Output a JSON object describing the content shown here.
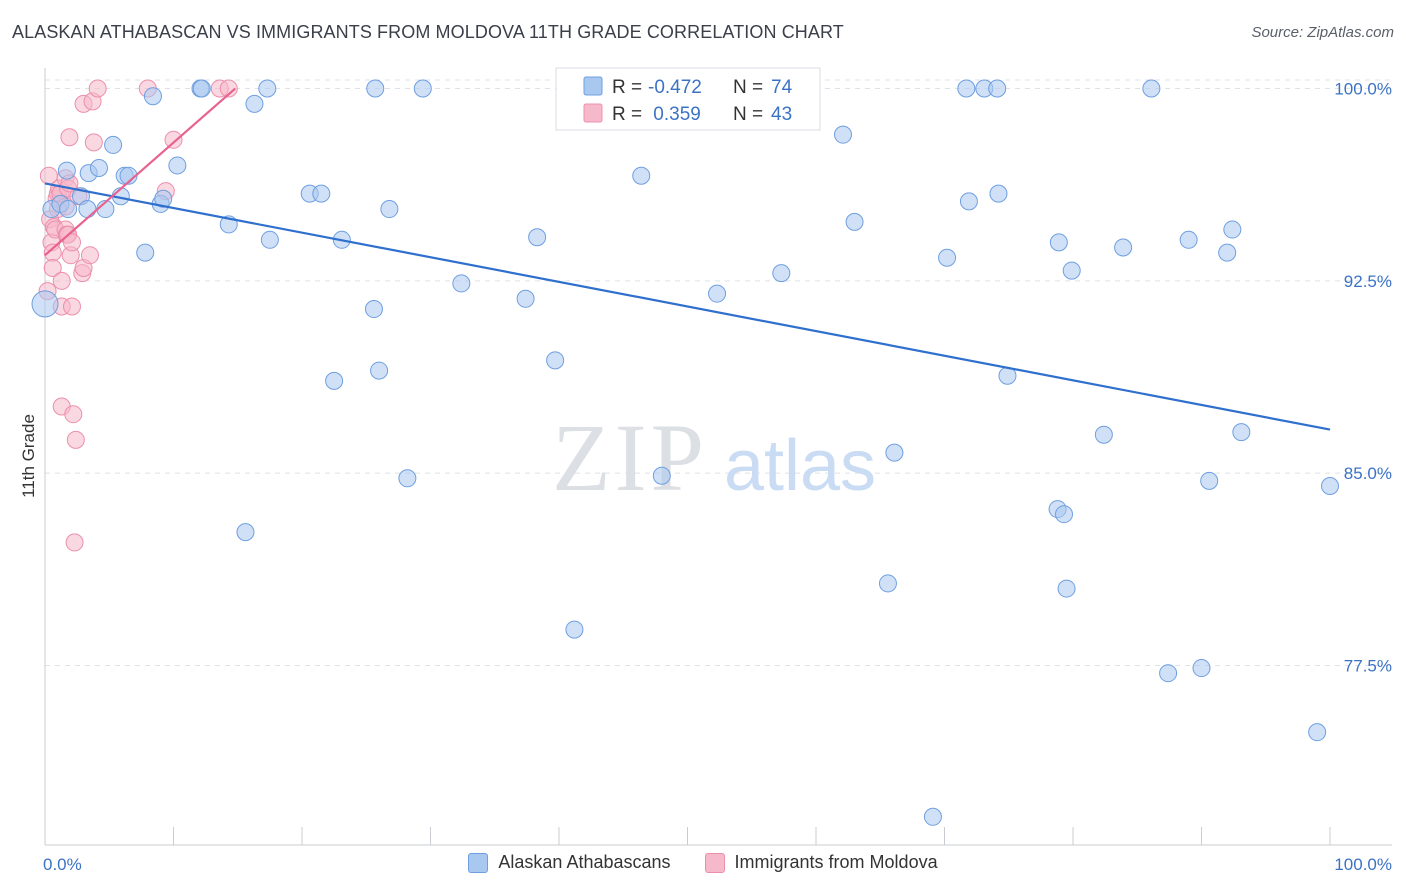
{
  "header": {
    "title": "ALASKAN ATHABASCAN VS IMMIGRANTS FROM MOLDOVA 11TH GRADE CORRELATION CHART",
    "source": "Source: ZipAtlas.com"
  },
  "watermark": {
    "zip": "ZIP",
    "atlas": "atlas"
  },
  "stats_legend": {
    "rows": [
      {
        "r_label": "R =",
        "r_value": "-0.472",
        "n_label": "N =",
        "n_value": "74"
      },
      {
        "r_label": "R =",
        "r_value": " 0.359",
        "n_label": "N =",
        "n_value": "43"
      }
    ]
  },
  "colors": {
    "blue_fill": "#a9c8f0",
    "blue_stroke": "#6f9fe0",
    "blue_line": "#2f6fcd",
    "pink_fill": "#f6b8cb",
    "pink_stroke": "#ec8fab",
    "pink_line": "#e8628f",
    "tick_text": "#3b73c4",
    "grid": "#dde1e8"
  },
  "chart_data": {
    "type": "scatter",
    "title": "ALASKAN ATHABASCAN VS IMMIGRANTS FROM MOLDOVA 11TH GRADE CORRELATION CHART",
    "xlabel": "",
    "ylabel": "11th Grade",
    "xlim": [
      0,
      100
    ],
    "ylim": [
      70.5,
      100.8
    ],
    "x_tick_labels": [
      "0.0%",
      "100.0%"
    ],
    "y_ticks": [
      77.5,
      85.0,
      92.5,
      100.0
    ],
    "y_tick_labels": [
      "77.5%",
      "85.0%",
      "92.5%",
      "100.0%"
    ],
    "grid": true,
    "legend_position": "top-center",
    "series": [
      {
        "name": "Alaskan Athabascans",
        "color": "#a9c8f0",
        "trend": {
          "x": [
            0,
            100
          ],
          "y": [
            96.3,
            86.7
          ]
        },
        "points": [
          [
            0.0,
            91.6
          ],
          [
            0.5,
            95.3
          ],
          [
            1.2,
            95.5
          ],
          [
            1.7,
            96.8
          ],
          [
            1.8,
            95.3
          ],
          [
            2.8,
            95.8
          ],
          [
            3.3,
            95.3
          ],
          [
            3.4,
            96.7
          ],
          [
            4.2,
            96.9
          ],
          [
            4.7,
            95.3
          ],
          [
            5.3,
            97.8
          ],
          [
            5.9,
            95.8
          ],
          [
            6.2,
            96.6
          ],
          [
            6.5,
            96.6
          ],
          [
            7.8,
            93.6
          ],
          [
            8.4,
            99.7
          ],
          [
            9.0,
            95.5
          ],
          [
            9.2,
            95.7
          ],
          [
            10.3,
            97.0
          ],
          [
            12.1,
            100.0
          ],
          [
            12.2,
            100.0
          ],
          [
            14.3,
            94.7
          ],
          [
            15.6,
            82.7
          ],
          [
            16.3,
            99.4
          ],
          [
            17.3,
            100.0
          ],
          [
            17.5,
            94.1
          ],
          [
            20.6,
            95.9
          ],
          [
            21.5,
            95.9
          ],
          [
            22.5,
            88.6
          ],
          [
            23.1,
            94.1
          ],
          [
            25.6,
            91.4
          ],
          [
            25.7,
            100.0
          ],
          [
            26.0,
            89.0
          ],
          [
            26.8,
            95.3
          ],
          [
            28.2,
            84.8
          ],
          [
            29.4,
            100.0
          ],
          [
            32.4,
            92.4
          ],
          [
            37.4,
            91.8
          ],
          [
            38.3,
            94.2
          ],
          [
            39.7,
            89.4
          ],
          [
            41.2,
            78.9
          ],
          [
            46.4,
            96.6
          ],
          [
            48.0,
            84.9
          ],
          [
            52.3,
            92.0
          ],
          [
            57.3,
            92.8
          ],
          [
            62.1,
            98.2
          ],
          [
            63.0,
            94.8
          ],
          [
            65.6,
            80.7
          ],
          [
            66.1,
            85.8
          ],
          [
            69.1,
            71.6
          ],
          [
            70.2,
            93.4
          ],
          [
            71.7,
            100.0
          ],
          [
            71.9,
            95.6
          ],
          [
            73.1,
            100.0
          ],
          [
            74.1,
            100.0
          ],
          [
            74.2,
            95.9
          ],
          [
            74.9,
            88.8
          ],
          [
            78.8,
            83.6
          ],
          [
            78.9,
            94.0
          ],
          [
            79.3,
            83.4
          ],
          [
            79.5,
            80.5
          ],
          [
            79.9,
            92.9
          ],
          [
            82.4,
            86.5
          ],
          [
            83.9,
            93.8
          ],
          [
            86.1,
            100.0
          ],
          [
            87.4,
            77.2
          ],
          [
            89.0,
            94.1
          ],
          [
            90.0,
            77.4
          ],
          [
            90.6,
            84.7
          ],
          [
            92.0,
            93.6
          ],
          [
            92.4,
            94.5
          ],
          [
            93.1,
            86.6
          ],
          [
            99.0,
            74.9
          ],
          [
            100.0,
            84.5
          ]
        ]
      },
      {
        "name": "Immigrants from Moldova",
        "color": "#f6b8cb",
        "trend": {
          "x": [
            0,
            14.8
          ],
          "y": [
            93.5,
            100.0
          ]
        },
        "points": [
          [
            0.2,
            92.1
          ],
          [
            0.4,
            94.9
          ],
          [
            0.5,
            94.0
          ],
          [
            0.6,
            93.6
          ],
          [
            0.6,
            93.0
          ],
          [
            0.7,
            94.6
          ],
          [
            0.8,
            94.5
          ],
          [
            0.9,
            95.7
          ],
          [
            1.0,
            95.3
          ],
          [
            1.0,
            95.9
          ],
          [
            1.1,
            96.1
          ],
          [
            1.2,
            95.9
          ],
          [
            1.3,
            92.5
          ],
          [
            1.3,
            87.6
          ],
          [
            1.3,
            91.5
          ],
          [
            1.6,
            96.5
          ],
          [
            1.6,
            95.4
          ],
          [
            1.6,
            94.5
          ],
          [
            1.7,
            94.3
          ],
          [
            1.8,
            94.3
          ],
          [
            1.8,
            96.1
          ],
          [
            1.9,
            96.3
          ],
          [
            1.9,
            98.1
          ],
          [
            2.0,
            93.5
          ],
          [
            2.1,
            94.0
          ],
          [
            2.1,
            91.5
          ],
          [
            2.2,
            87.3
          ],
          [
            2.3,
            82.3
          ],
          [
            2.4,
            86.3
          ],
          [
            2.6,
            95.8
          ],
          [
            2.9,
            92.8
          ],
          [
            3.0,
            93.0
          ],
          [
            3.0,
            99.4
          ],
          [
            3.5,
            93.5
          ],
          [
            3.7,
            99.5
          ],
          [
            3.8,
            97.9
          ],
          [
            4.1,
            100.0
          ],
          [
            8.0,
            100.0
          ],
          [
            9.4,
            96.0
          ],
          [
            10.0,
            98.0
          ],
          [
            13.6,
            100.0
          ],
          [
            14.3,
            100.0
          ],
          [
            0.3,
            96.6
          ]
        ]
      }
    ]
  }
}
